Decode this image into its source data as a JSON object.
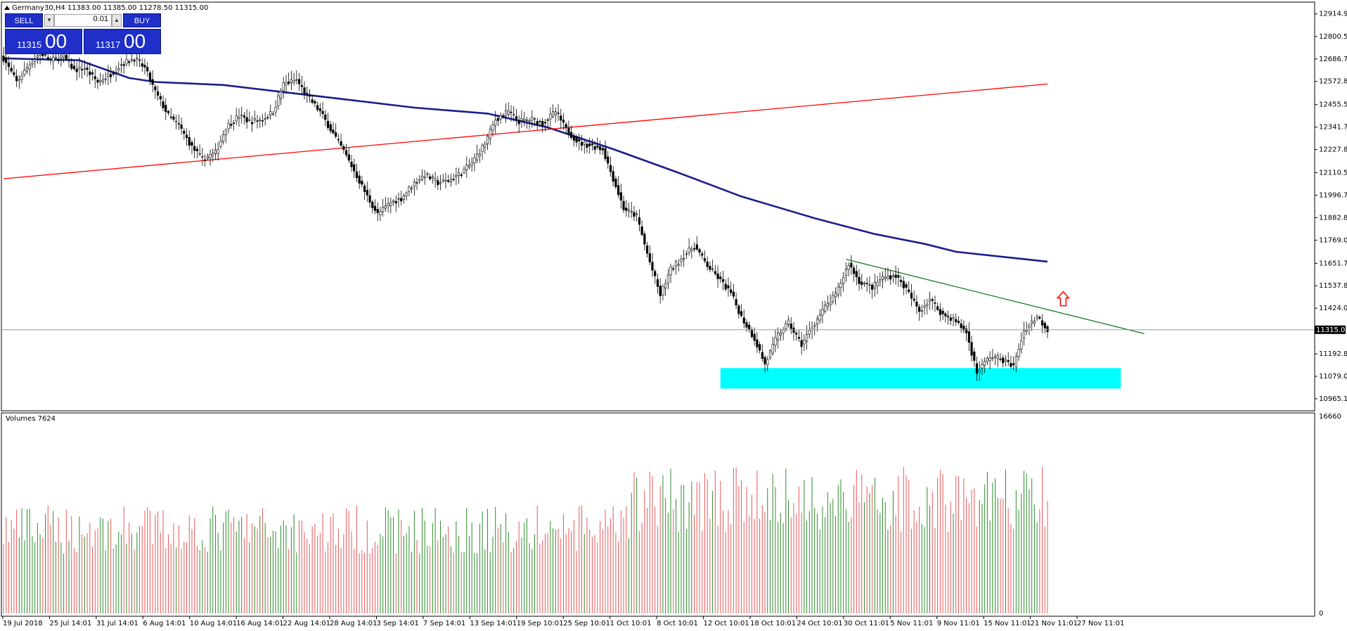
{
  "header": {
    "symbol_line": "Germany30,H4  11383.00 11385.00 11278.50 11315.00",
    "volumes_label": "Volumes 7624"
  },
  "trade_panel": {
    "sell_label": "SELL",
    "buy_label": "BUY",
    "lot": "0.01",
    "sell_price_small": "11315",
    "sell_price_big": "00",
    "buy_price_small": "11317",
    "buy_price_big": "00",
    "color": "#1f2fc8"
  },
  "chart_data": [
    {
      "type": "candlestick",
      "symbol": "Germany30",
      "timeframe": "H4",
      "ohlc_last": {
        "open": 11383.0,
        "high": 11385.0,
        "low": 11278.5,
        "close": 11315.0
      },
      "current_price": "11315.00",
      "ylim": [
        10908,
        12971
      ],
      "price_ticks": [
        "12914.95",
        "12800.55",
        "12686.70",
        "12572.85",
        "12455.55",
        "12341.70",
        "12227.85",
        "12110.55",
        "11996.70",
        "11882.85",
        "11769.00",
        "11651.70",
        "11537.85",
        "11424.00",
        "11192.85",
        "11079.00",
        "10965.15"
      ],
      "price_tick_values": [
        12914.95,
        12800.55,
        12686.7,
        12572.85,
        12455.55,
        12341.7,
        12227.85,
        12110.55,
        11996.7,
        11882.85,
        11769.0,
        11651.7,
        11537.85,
        11424.0,
        11192.85,
        11079.0,
        10965.15
      ],
      "time_labels": [
        "19 Jul 2018",
        "25 Jul 14:01",
        "31 Jul 14:01",
        "6 Aug 14:01",
        "10 Aug 14:01",
        "16 Aug 14:01",
        "22 Aug 14:01",
        "28 Aug 14:01",
        "3 Sep 14:01",
        "7 Sep 14:01",
        "13 Sep 14:01",
        "19 Sep 10:01",
        "25 Sep 10:01",
        "1 Oct 10:01",
        "8 Oct 10:01",
        "12 Oct 10:01",
        "18 Oct 10:01",
        "24 Oct 10:01",
        "30 Oct 11:01",
        "5 Nov 11:01",
        "9 Nov 11:01",
        "15 Nov 11:01",
        "21 Nov 11:01",
        "27 Nov 11:01"
      ],
      "close_path": [
        [
          0,
          12690
        ],
        [
          5,
          12570
        ],
        [
          10,
          12660
        ],
        [
          14,
          12720
        ],
        [
          18,
          12680
        ],
        [
          23,
          12700
        ],
        [
          27,
          12630
        ],
        [
          31,
          12640
        ],
        [
          36,
          12570
        ],
        [
          41,
          12610
        ],
        [
          45,
          12660
        ],
        [
          50,
          12690
        ],
        [
          54,
          12640
        ],
        [
          58,
          12520
        ],
        [
          63,
          12400
        ],
        [
          67,
          12350
        ],
        [
          72,
          12240
        ],
        [
          76,
          12180
        ],
        [
          81,
          12210
        ],
        [
          85,
          12340
        ],
        [
          90,
          12400
        ],
        [
          94,
          12370
        ],
        [
          99,
          12380
        ],
        [
          103,
          12420
        ],
        [
          107,
          12560
        ],
        [
          112,
          12580
        ],
        [
          116,
          12500
        ],
        [
          121,
          12420
        ],
        [
          125,
          12330
        ],
        [
          130,
          12220
        ],
        [
          134,
          12120
        ],
        [
          139,
          11990
        ],
        [
          143,
          11900
        ],
        [
          148,
          11960
        ],
        [
          152,
          11980
        ],
        [
          157,
          12060
        ],
        [
          161,
          12100
        ],
        [
          166,
          12060
        ],
        [
          170,
          12070
        ],
        [
          175,
          12110
        ],
        [
          179,
          12160
        ],
        [
          184,
          12260
        ],
        [
          188,
          12380
        ],
        [
          193,
          12420
        ],
        [
          197,
          12370
        ],
        [
          202,
          12380
        ],
        [
          206,
          12360
        ],
        [
          211,
          12420
        ],
        [
          215,
          12330
        ],
        [
          220,
          12260
        ],
        [
          224,
          12250
        ],
        [
          229,
          12230
        ],
        [
          233,
          12080
        ],
        [
          237,
          11930
        ],
        [
          242,
          11890
        ],
        [
          246,
          11700
        ],
        [
          251,
          11490
        ],
        [
          255,
          11620
        ],
        [
          260,
          11690
        ],
        [
          264,
          11740
        ],
        [
          269,
          11640
        ],
        [
          273,
          11580
        ],
        [
          278,
          11500
        ],
        [
          282,
          11380
        ],
        [
          287,
          11270
        ],
        [
          291,
          11140
        ],
        [
          296,
          11290
        ],
        [
          300,
          11350
        ],
        [
          305,
          11240
        ],
        [
          309,
          11330
        ],
        [
          314,
          11430
        ],
        [
          318,
          11490
        ],
        [
          323,
          11650
        ],
        [
          327,
          11560
        ],
        [
          332,
          11530
        ],
        [
          336,
          11580
        ],
        [
          341,
          11590
        ],
        [
          345,
          11520
        ],
        [
          350,
          11410
        ],
        [
          354,
          11470
        ],
        [
          359,
          11390
        ],
        [
          363,
          11370
        ],
        [
          368,
          11300
        ],
        [
          372,
          11100
        ],
        [
          377,
          11180
        ],
        [
          381,
          11170
        ],
        [
          386,
          11130
        ],
        [
          390,
          11310
        ],
        [
          395,
          11383
        ],
        [
          399,
          11315
        ]
      ],
      "series": [
        {
          "name": "MA (blue)",
          "color": "#1b1e8c",
          "points": [
            [
              0,
              12690
            ],
            [
              29,
              12680
            ],
            [
              48,
              12590
            ],
            [
              58,
              12570
            ],
            [
              84,
              12555
            ],
            [
              119,
              12500
            ],
            [
              157,
              12440
            ],
            [
              185,
              12410
            ],
            [
              208,
              12340
            ],
            [
              233,
              12230
            ],
            [
              258,
              12110
            ],
            [
              282,
              11990
            ],
            [
              310,
              11880
            ],
            [
              333,
              11800
            ],
            [
              352,
              11750
            ],
            [
              364,
              11710
            ],
            [
              399,
              11660
            ]
          ]
        },
        {
          "name": "Trendline (red)",
          "color": "#ff0000",
          "points": [
            [
              0,
              12080
            ],
            [
              399,
              12560
            ]
          ]
        },
        {
          "name": "Trendline (green)",
          "color": "#1a7a1a",
          "points": [
            [
              322,
              11672
            ],
            [
              436,
              11295
            ]
          ]
        }
      ],
      "support_zone": {
        "x_range": [
          274,
          427
        ],
        "y_range": [
          11017,
          11121
        ],
        "color": "#00ffff"
      },
      "annotation": "up-arrow",
      "grid": false
    },
    {
      "type": "bar",
      "title": "Volumes 7624",
      "ylim": [
        0,
        16660
      ],
      "y_ticks": [
        "16660",
        "0"
      ],
      "colors": {
        "up": "#2e8b2e",
        "down": "#e8585a"
      },
      "max_volume": 16660
    }
  ],
  "colors": {
    "up": "#2e8b2e",
    "down": "#e8585a",
    "ma": "#1b1e8c",
    "support": "#00ffff",
    "arrow": "#ff0000"
  }
}
